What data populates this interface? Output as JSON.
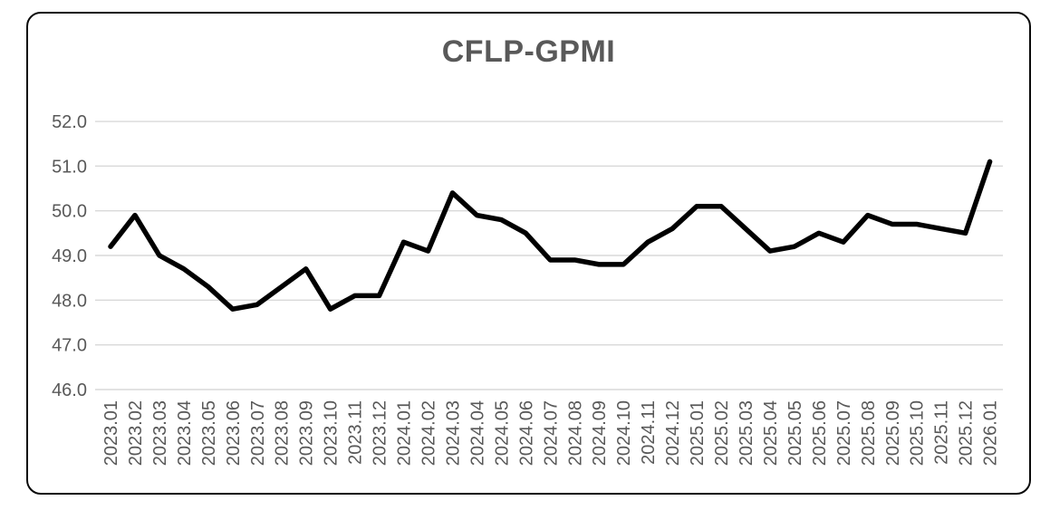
{
  "chart_data": {
    "type": "line",
    "title": "CFLP-GPMI",
    "categories": [
      "2023.01",
      "2023.02",
      "2023.03",
      "2023.04",
      "2023.05",
      "2023.06",
      "2023.07",
      "2023.08",
      "2023.09",
      "2023.10",
      "2023.11",
      "2023.12",
      "2024.01",
      "2024.02",
      "2024.03",
      "2024.04",
      "2024.05",
      "2024.06",
      "2024.07",
      "2024.08",
      "2024.09",
      "2024.10",
      "2024.11",
      "2024.12",
      "2025.01",
      "2025.02",
      "2025.03",
      "2025.04",
      "2025.05",
      "2025.06",
      "2025.07",
      "2025.08",
      "2025.09",
      "2025.10",
      "2025.11",
      "2025.12",
      "2026.01"
    ],
    "values": [
      49.2,
      49.9,
      49.0,
      48.7,
      48.3,
      47.8,
      47.9,
      48.3,
      48.7,
      47.8,
      48.1,
      48.1,
      49.3,
      49.1,
      50.4,
      49.9,
      49.8,
      49.5,
      48.9,
      48.9,
      48.8,
      48.8,
      49.3,
      49.6,
      50.1,
      50.1,
      49.6,
      49.1,
      49.2,
      49.5,
      49.3,
      49.9,
      49.7,
      49.7,
      49.6,
      49.5,
      51.1
    ],
    "xlabel": "",
    "ylabel": "",
    "ylim": [
      46.0,
      52.0
    ],
    "yticks": [
      "52.0",
      "51.0",
      "50.0",
      "49.0",
      "48.0",
      "47.0",
      "46.0"
    ],
    "grid": true,
    "legend_position": "none",
    "line_color": "#000000",
    "line_width": 5.5,
    "gridline_color": "#d9d9d9",
    "axis_label_color": "#595959",
    "title_color": "#595959",
    "frame_color": "#0a0a0a",
    "background_color": "#ffffff"
  }
}
